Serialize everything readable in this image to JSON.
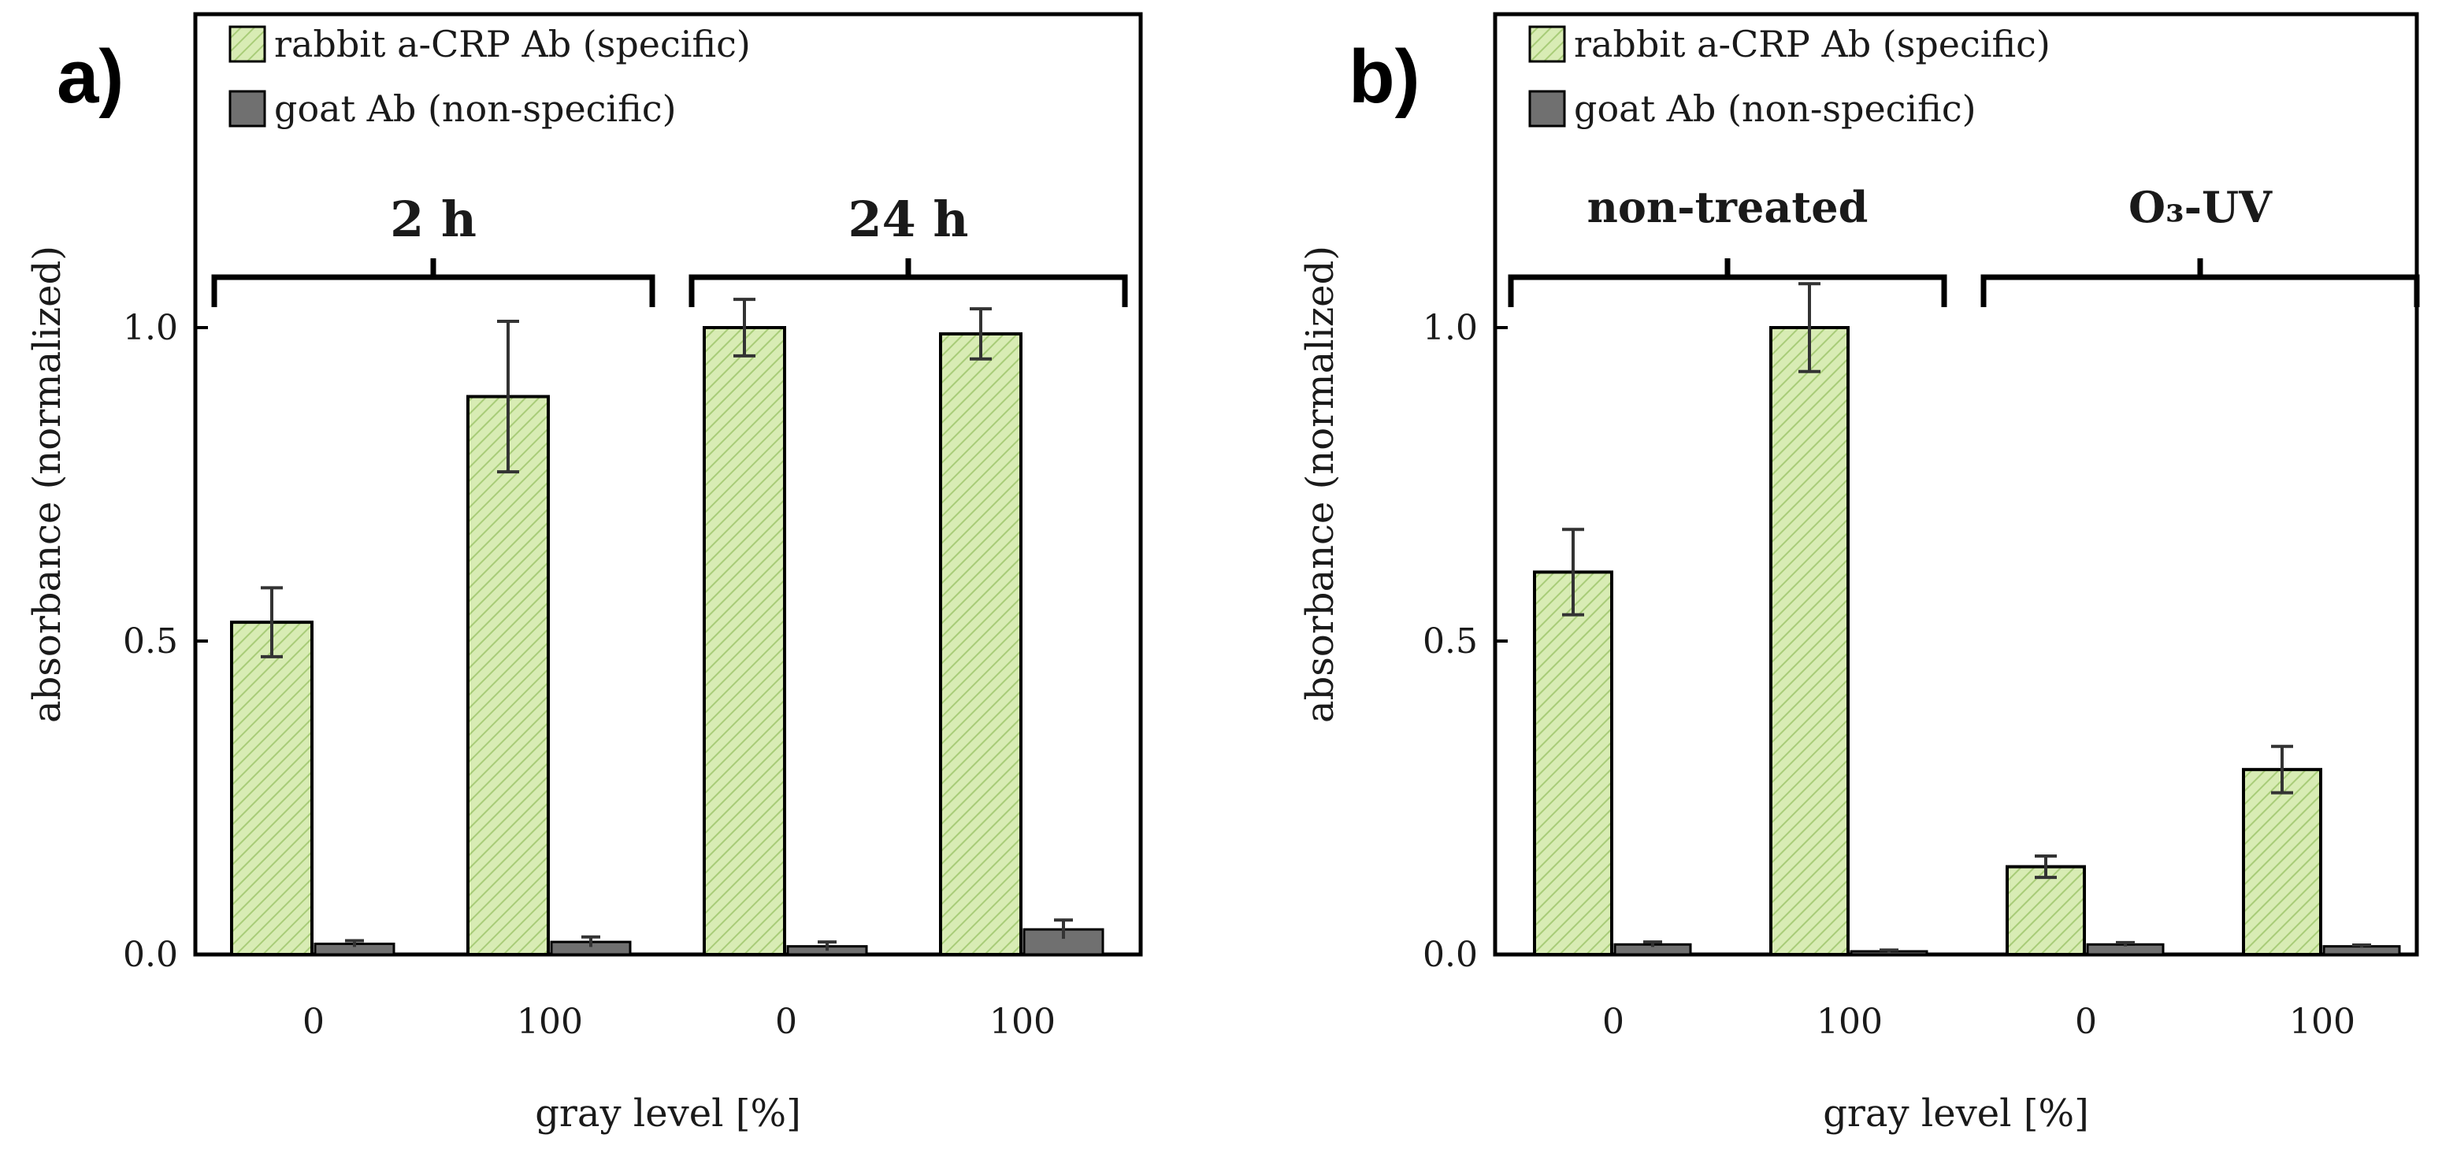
{
  "colors": {
    "specific_fill": "#d8ecb4",
    "specific_hatch": "#a8cc78",
    "nonspecific_fill": "#707070",
    "frame": "#000000",
    "errorbar": "#333333"
  },
  "chart_data": [
    {
      "type": "bar",
      "panel": "a)",
      "categories": [
        "0",
        "100",
        "0",
        "100"
      ],
      "groups": [
        {
          "label": "2 h",
          "categories": [
            0,
            1
          ]
        },
        {
          "label": "24 h",
          "categories": [
            2,
            3
          ]
        }
      ],
      "series": [
        {
          "name": "rabbit a-CRP Ab (specific)",
          "values": [
            0.53,
            0.89,
            1.0,
            0.99
          ],
          "errors": [
            0.055,
            0.12,
            0.045,
            0.04
          ]
        },
        {
          "name": "goat Ab (non-specific)",
          "values": [
            0.017,
            0.02,
            0.013,
            0.04
          ],
          "errors": [
            0.005,
            0.008,
            0.007,
            0.015
          ]
        }
      ],
      "xlabel": "gray level [%]",
      "ylabel": "absorbance (normalized)",
      "ylim": [
        0,
        1.5
      ],
      "yticks": [
        "0.0",
        "0.5",
        "1.0"
      ],
      "legend": "top-left"
    },
    {
      "type": "bar",
      "panel": "b)",
      "categories": [
        "0",
        "100",
        "0",
        "100"
      ],
      "groups": [
        {
          "label": "non-treated",
          "categories": [
            0,
            1
          ]
        },
        {
          "label": "O₃-UV",
          "categories": [
            2,
            3
          ]
        }
      ],
      "series": [
        {
          "name": "rabbit a-CRP Ab (specific)",
          "values": [
            0.61,
            1.0,
            0.14,
            0.295
          ],
          "errors": [
            0.068,
            0.07,
            0.017,
            0.037
          ]
        },
        {
          "name": "goat Ab (non-specific)",
          "values": [
            0.016,
            0.005,
            0.016,
            0.013
          ],
          "errors": [
            0.004,
            0.002,
            0.003,
            0.002
          ]
        }
      ],
      "xlabel": "gray level [%]",
      "ylabel": "absorbance (normalized)",
      "ylim": [
        0,
        1.5
      ],
      "yticks": [
        "0.0",
        "0.5",
        "1.0"
      ],
      "legend": "top-left"
    }
  ]
}
